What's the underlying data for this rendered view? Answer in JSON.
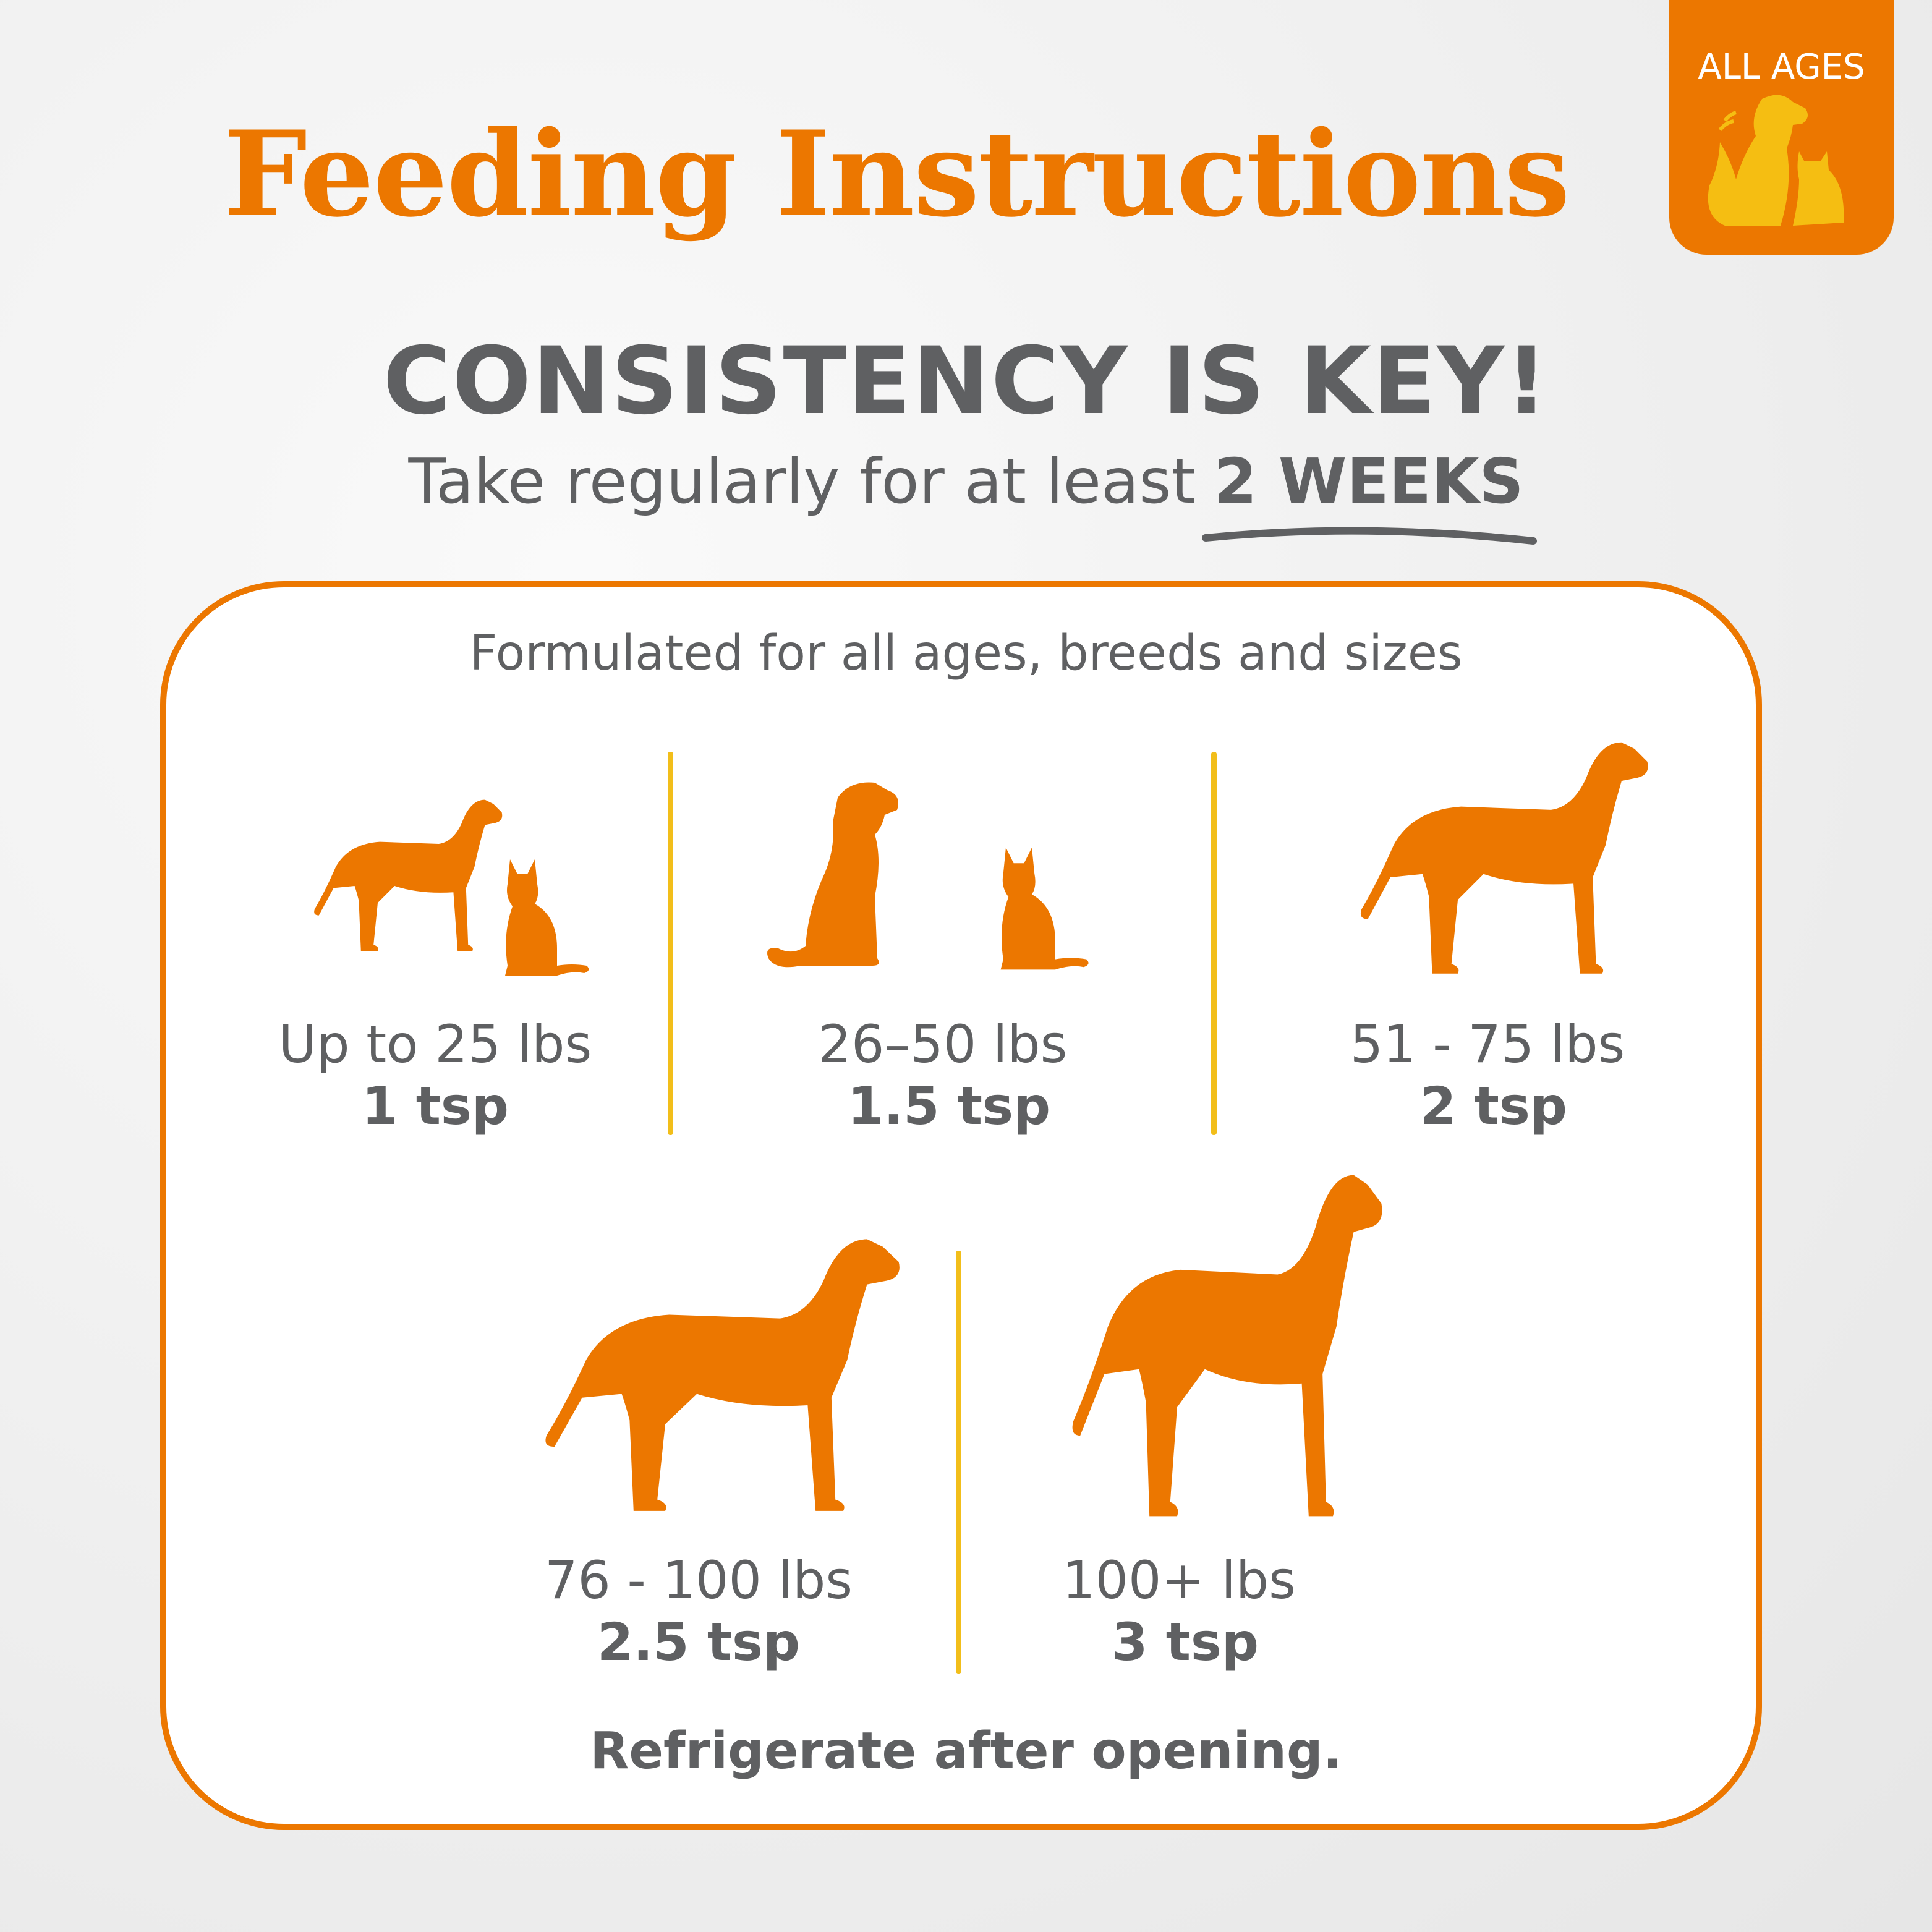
{
  "header": {
    "title": "Feeding Instructions"
  },
  "badge": {
    "label": "ALL AGES",
    "icon": "dog-and-cat-icon"
  },
  "headline": "CONSISTENCY IS KEY!",
  "subtitle": {
    "text": "Take regularly for at least",
    "emphasis": "2 WEEKS"
  },
  "card": {
    "intro": "Formulated for all ages, breeds and sizes",
    "doses": [
      {
        "weight": "Up to 25 lbs",
        "amount": "1 tsp",
        "icon": "small-dog-and-cat-icon"
      },
      {
        "weight": "26–50 lbs",
        "amount": "1.5 tsp",
        "icon": "sitting-dog-and-cat-icon"
      },
      {
        "weight": "51 - 75 lbs",
        "amount": "2 tsp",
        "icon": "medium-dog-icon"
      },
      {
        "weight": "76 - 100 lbs",
        "amount": "2.5 tsp",
        "icon": "large-dog-icon"
      },
      {
        "weight": "100+ lbs",
        "amount": "3 tsp",
        "icon": "giant-dog-icon"
      }
    ],
    "footer": "Refrigerate after opening."
  },
  "colors": {
    "accent": "#ec7700",
    "yellow": "#f2be1a",
    "text": "#5f6062"
  }
}
